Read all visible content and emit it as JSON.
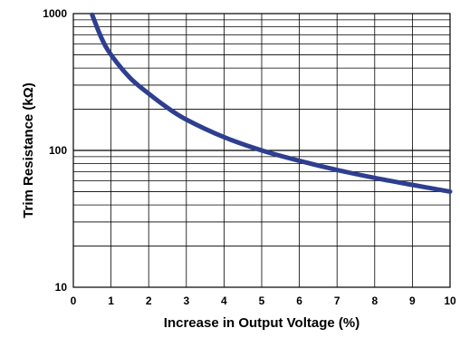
{
  "chart_data": {
    "type": "line",
    "xlabel": "Increase in Output Voltage (%)",
    "ylabel": "Trim Resistance (kΩ)",
    "xlim": [
      0,
      10
    ],
    "ylim": [
      10,
      1000
    ],
    "y_scale": "log",
    "grid": true,
    "x_ticks": [
      "0",
      "1",
      "2",
      "3",
      "4",
      "5",
      "6",
      "7",
      "8",
      "9",
      "10"
    ],
    "y_ticks": [
      "10",
      "100",
      "1000"
    ],
    "line_color": "#2e3f8f",
    "series": [
      {
        "x": [
          0.5,
          0.75,
          1,
          1.5,
          2,
          2.5,
          3,
          4,
          5,
          6,
          7,
          8,
          9,
          10
        ],
        "values": [
          980,
          660,
          500,
          340,
          260,
          205,
          168,
          125,
          100,
          84,
          72,
          63,
          56,
          50
        ]
      }
    ]
  }
}
